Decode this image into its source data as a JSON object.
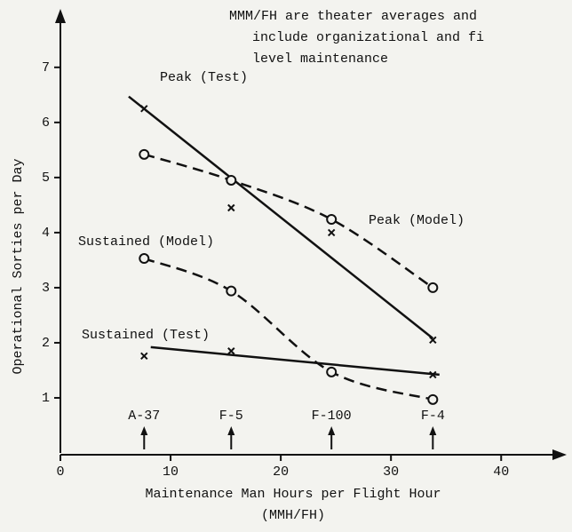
{
  "chart_data": {
    "type": "line",
    "annotation": [
      "MMM/FH are theater averages and",
      "include organizational and fi",
      "level maintenance"
    ],
    "xlabel": [
      "Maintenance Man Hours per Flight Hour",
      "(MMH/FH)"
    ],
    "ylabel": "Operational Sorties per Day",
    "xlim": [
      0,
      45.3
    ],
    "ylim": [
      0,
      7.9
    ],
    "xticks": [
      0,
      10,
      20,
      30,
      40
    ],
    "yticks": [
      1,
      2,
      3,
      4,
      5,
      6,
      7
    ],
    "x": [
      7.6,
      15.5,
      24.6,
      33.8
    ],
    "aircraft": [
      "A-37",
      "F-5",
      "F-100",
      "F-4"
    ],
    "color": "#111111",
    "series": [
      {
        "name": "Peak (Test)",
        "marker": "x",
        "style": "solid",
        "values": [
          6.25,
          4.45,
          4.0,
          2.05
        ],
        "trend": {
          "x": [
            6.2,
            33.8
          ],
          "y": [
            6.47,
            2.08
          ]
        }
      },
      {
        "name": "Peak (Model)",
        "marker": "o",
        "style": "dashed",
        "values": [
          5.42,
          4.95,
          4.24,
          3.0
        ]
      },
      {
        "name": "Sustained (Model)",
        "marker": "o",
        "style": "dashed",
        "values": [
          3.53,
          2.94,
          1.47,
          0.97
        ]
      },
      {
        "name": "Sustained (Test)",
        "marker": "x",
        "style": "solid",
        "values": [
          1.76,
          1.85,
          null,
          1.42
        ],
        "trend": {
          "x": [
            8.2,
            34.4
          ],
          "y": [
            1.92,
            1.42
          ]
        }
      }
    ]
  }
}
